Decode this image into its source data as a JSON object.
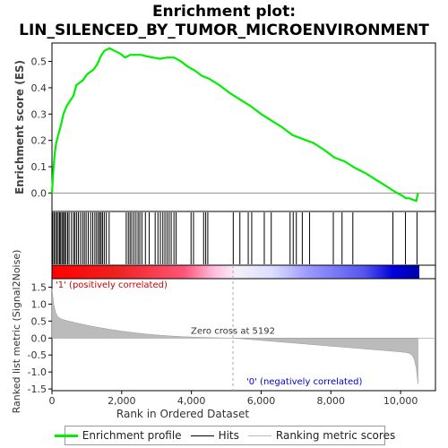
{
  "chart_data": {
    "type": "line",
    "title_line1": "Enrichment plot:",
    "title_line2": "LIN_SILENCED_BY_TUMOR_MICROENVIRONMENT",
    "ylabel_top": "Enrichment score (ES)",
    "ylabel_bottom": "Ranked list metric (Signal2Noise)",
    "xlabel": "Rank in Ordered Dataset",
    "n_genes": 10500,
    "xlim": [
      0,
      11000
    ],
    "es_ylim": [
      -0.07,
      0.57
    ],
    "metric_ylim": [
      -1.55,
      1.75
    ],
    "x_ticks": [
      0,
      2000,
      4000,
      6000,
      8000,
      10000
    ],
    "x_tick_labels": [
      "0",
      "2,000",
      "4,000",
      "6,000",
      "8,000",
      "10,000"
    ],
    "es_ticks": [
      0.0,
      0.1,
      0.2,
      0.3,
      0.4,
      0.5
    ],
    "es_tick_labels": [
      "0.0",
      "0.1",
      "0.2",
      "0.3",
      "0.4",
      "0.5"
    ],
    "metric_ticks": [
      1.5,
      1.0,
      0.5,
      0.0,
      -0.5,
      -1.0,
      -1.5
    ],
    "metric_tick_labels": [
      "1.5",
      "1.0",
      "0.5",
      "0.0",
      "-0.5",
      "-1.0",
      "-1.5"
    ],
    "zero_cross": 5192,
    "zero_cross_label": "Zero cross at 5192",
    "pos_label": "'1' (positively correlated)",
    "neg_label": "'0' (negatively correlated)",
    "es_curve": [
      [
        0,
        0.0
      ],
      [
        40,
        0.09
      ],
      [
        80,
        0.15
      ],
      [
        120,
        0.19
      ],
      [
        180,
        0.22
      ],
      [
        260,
        0.26
      ],
      [
        330,
        0.3
      ],
      [
        420,
        0.33
      ],
      [
        520,
        0.35
      ],
      [
        620,
        0.37
      ],
      [
        700,
        0.41
      ],
      [
        800,
        0.42
      ],
      [
        900,
        0.43
      ],
      [
        1000,
        0.45
      ],
      [
        1100,
        0.46
      ],
      [
        1200,
        0.47
      ],
      [
        1300,
        0.49
      ],
      [
        1400,
        0.52
      ],
      [
        1500,
        0.54
      ],
      [
        1650,
        0.55
      ],
      [
        1800,
        0.54
      ],
      [
        1950,
        0.53
      ],
      [
        2100,
        0.515
      ],
      [
        2250,
        0.525
      ],
      [
        2400,
        0.525
      ],
      [
        2550,
        0.525
      ],
      [
        2700,
        0.52
      ],
      [
        2900,
        0.515
      ],
      [
        3100,
        0.51
      ],
      [
        3300,
        0.515
      ],
      [
        3500,
        0.515
      ],
      [
        3700,
        0.5
      ],
      [
        3900,
        0.48
      ],
      [
        4100,
        0.465
      ],
      [
        4300,
        0.445
      ],
      [
        4500,
        0.435
      ],
      [
        4800,
        0.41
      ],
      [
        5100,
        0.38
      ],
      [
        5400,
        0.355
      ],
      [
        5700,
        0.33
      ],
      [
        6000,
        0.3
      ],
      [
        6300,
        0.275
      ],
      [
        6600,
        0.25
      ],
      [
        6900,
        0.22
      ],
      [
        7200,
        0.205
      ],
      [
        7500,
        0.19
      ],
      [
        7800,
        0.165
      ],
      [
        8100,
        0.135
      ],
      [
        8400,
        0.12
      ],
      [
        8700,
        0.095
      ],
      [
        9000,
        0.075
      ],
      [
        9300,
        0.05
      ],
      [
        9600,
        0.025
      ],
      [
        9780,
        0.01
      ],
      [
        9900,
        0.0
      ],
      [
        10050,
        -0.01
      ],
      [
        10150,
        -0.02
      ],
      [
        10250,
        -0.02
      ],
      [
        10350,
        -0.025
      ],
      [
        10450,
        -0.03
      ],
      [
        10500,
        0.0
      ]
    ],
    "hits": [
      20,
      60,
      100,
      140,
      180,
      220,
      250,
      290,
      330,
      360,
      400,
      450,
      490,
      560,
      620,
      660,
      710,
      760,
      820,
      880,
      930,
      980,
      1040,
      1110,
      1170,
      1230,
      1280,
      1330,
      1370,
      1410,
      1450,
      1500,
      1560,
      1640,
      2130,
      2190,
      2240,
      2290,
      2350,
      2410,
      2470,
      2520,
      2580,
      2680,
      2790,
      2960,
      3040,
      3110,
      3180,
      3240,
      3300,
      3360,
      3420,
      3500,
      3560,
      3990,
      4060,
      4350,
      4410,
      4470,
      5200,
      5390,
      5630,
      5730,
      6090,
      6290,
      6830,
      6920,
      7010,
      7180,
      7390,
      8070,
      8320,
      8630,
      9780,
      10140,
      10470
    ]
  }
}
